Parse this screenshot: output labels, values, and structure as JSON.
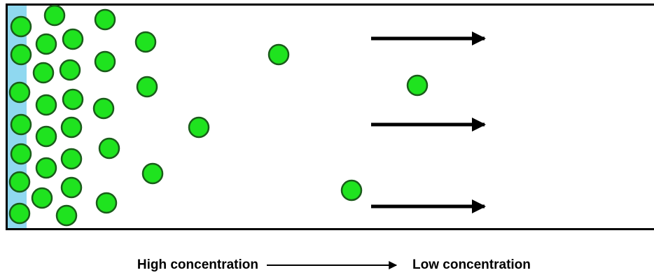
{
  "labels": {
    "high": "High concentration",
    "low": "Low concentration"
  }
}
